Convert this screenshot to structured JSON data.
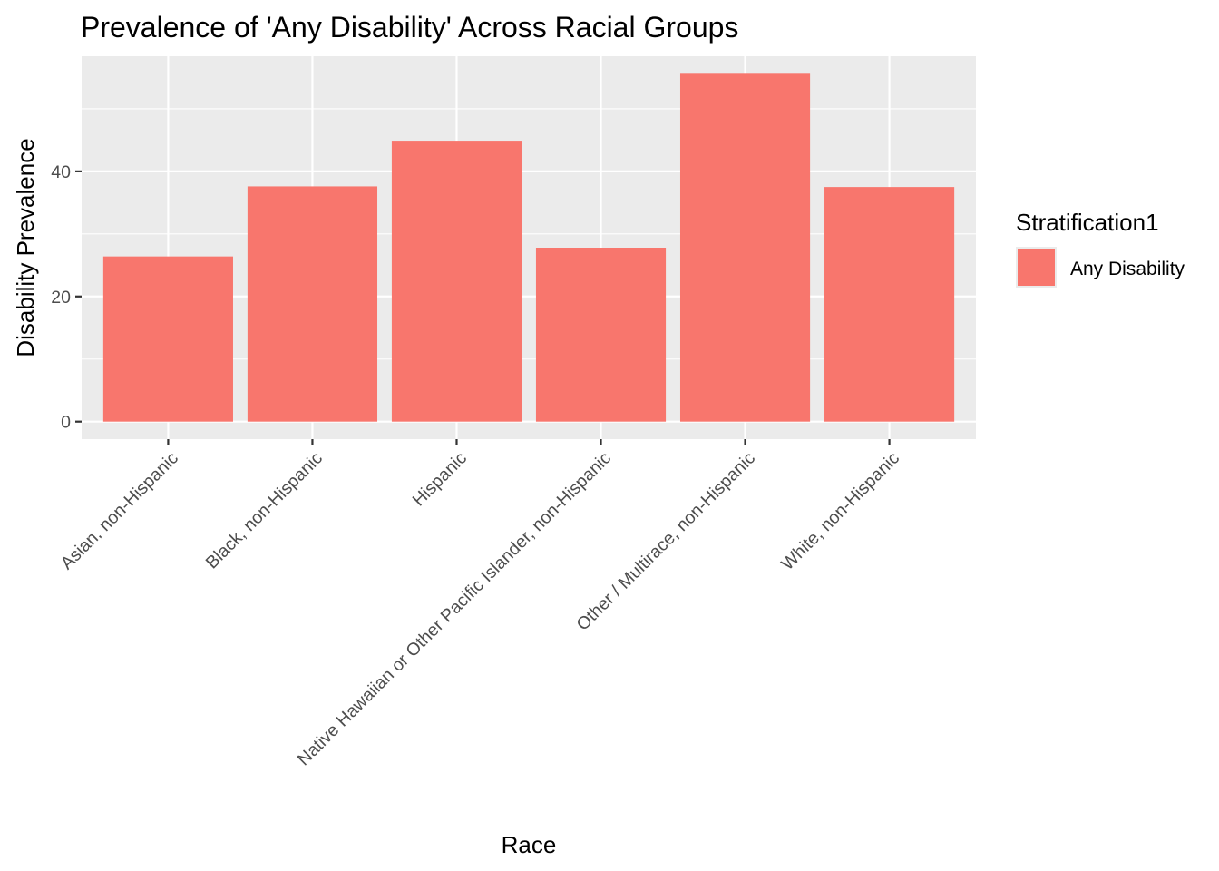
{
  "chart_data": {
    "type": "bar",
    "title": "Prevalence of 'Any Disability' Across Racial Groups",
    "xlabel": "Race",
    "ylabel": "Disability Prevalence",
    "categories": [
      "Asian, non-Hispanic",
      "Black, non-Hispanic",
      "Hispanic",
      "Native Hawaiian or Other Pacific Islander, non-Hispanic",
      "Other / Multirace, non-Hispanic",
      "White, non-Hispanic"
    ],
    "series": [
      {
        "name": "Any Disability",
        "values": [
          26.4,
          37.6,
          44.9,
          27.8,
          55.6,
          37.5
        ]
      }
    ],
    "ylim": [
      -2.8,
      58.4
    ],
    "yticks": [
      0,
      20,
      40
    ],
    "grid": true,
    "legend": {
      "title": "Stratification1",
      "placement": "right",
      "entries": [
        "Any Disability"
      ]
    },
    "colors": {
      "bar": "#f8766d",
      "panel": "#ebebeb",
      "grid": "#ffffff"
    }
  }
}
